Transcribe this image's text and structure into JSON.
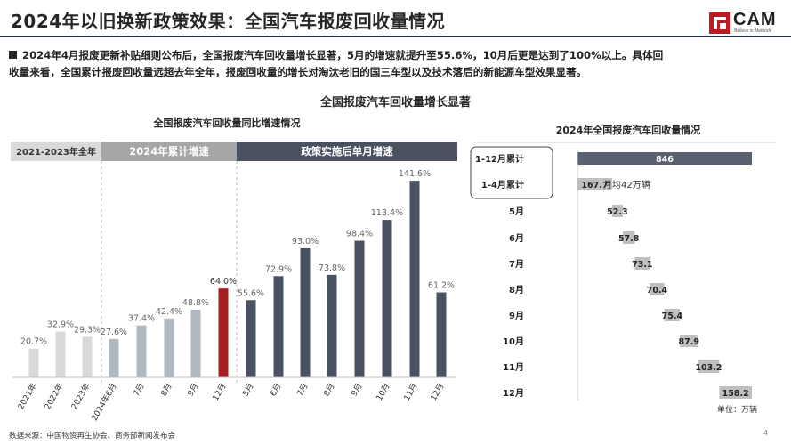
{
  "header": {
    "title": "2024年以旧换新政策效果：全国汽车报废回收量情况",
    "logo_text": "CAM",
    "logo_tagline": "Believe in Methods"
  },
  "summary": {
    "line1": "2024年4月报废更新补贴细则公布后，全国报废汽车回收量增长显著，5月的增速就提升至55.6%，10月后更是达到了100%以上。具体回",
    "line2": "收量来看，全国累计报废回收量远超去年全年，报废回收量的增长对淘汰老旧的国三车型以及技术落后的新能源车型效果显著。"
  },
  "main_heading": "全国报废汽车回收量增长显著",
  "colors": {
    "gray_band": "#d9d9d9",
    "mid_band": "#a6a6a6",
    "dark_band": "#4a5160",
    "light_bar": "#d9d9d9",
    "mid_bar": "#b2b8c2",
    "dark_bar": "#4a5160",
    "highlight_bar": "#a61e22",
    "right_light_bar": "#bfbfbf",
    "right_dark_bar": "#5a6170"
  },
  "chart_data": [
    {
      "type": "bar",
      "title": "全国报废汽车回收量同比增速情况",
      "groups": [
        "2021-2023年全年",
        "2024年累计增速",
        "政策实施后单月增速"
      ],
      "categories": [
        "2021年",
        "2022年",
        "2023年",
        "2024年6月",
        "7月",
        "8月",
        "9月",
        "12月",
        "5月",
        "6月",
        "7月",
        "8月",
        "9月",
        "10月",
        "11月",
        "12月"
      ],
      "values": [
        20.7,
        32.9,
        29.3,
        27.6,
        37.4,
        42.4,
        48.8,
        64.0,
        55.6,
        72.9,
        93.0,
        73.8,
        98.4,
        113.4,
        141.6,
        61.2
      ],
      "value_labels": [
        "20.7%",
        "32.9%",
        "29.3%",
        "27.6%",
        "37.4%",
        "42.4%",
        "48.8%",
        "64.0%",
        "55.6%",
        "72.9%",
        "93.0%",
        "73.8%",
        "98.4%",
        "113.4%",
        "141.6%",
        "61.2%"
      ],
      "group_index": [
        0,
        0,
        0,
        1,
        1,
        1,
        1,
        1,
        2,
        2,
        2,
        2,
        2,
        2,
        2,
        2
      ],
      "highlight_index": 7,
      "ylim": [
        0,
        150
      ]
    },
    {
      "type": "bar",
      "title": "2024年全国报废汽车回收量情况",
      "orientation": "horizontal-waterfall",
      "categories": [
        "1-12月累计",
        "1-4月累计",
        "5月",
        "6月",
        "7月",
        "8月",
        "9月",
        "10月",
        "11月",
        "12月"
      ],
      "values": [
        846,
        167.7,
        52.3,
        57.8,
        73.1,
        70.4,
        75.4,
        87.9,
        103.2,
        158.2
      ],
      "value_labels": [
        "846",
        "167.7",
        "52.3",
        "57.8",
        "73.1",
        "70.4",
        "75.4",
        "87.9",
        "103.2",
        "158.2"
      ],
      "annotation": "月均42万辆",
      "unit_label": "单位：万辆"
    }
  ],
  "footer": {
    "source": "数据来源：中国物资再生协会、商务部新闻发布会",
    "page_number": "4"
  }
}
